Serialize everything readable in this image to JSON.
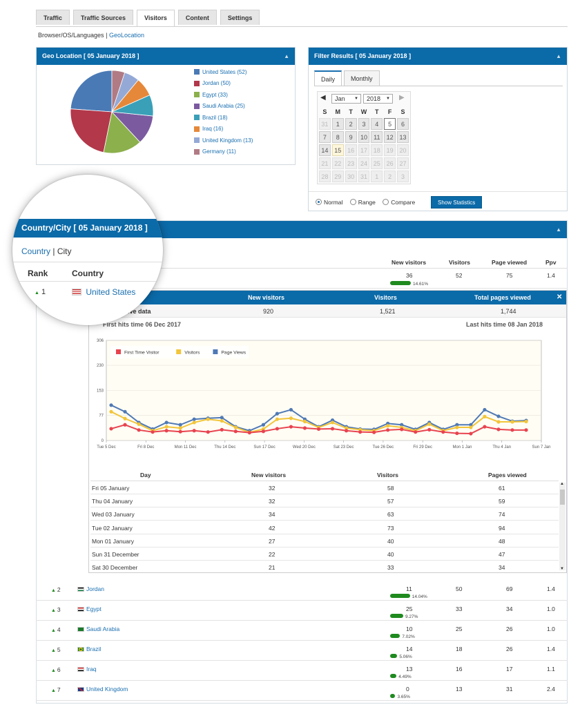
{
  "tabs": [
    "Traffic",
    "Traffic Sources",
    "Visitors",
    "Content",
    "Settings"
  ],
  "active_tab": "Visitors",
  "subnav": {
    "item1": "Browser/OS/Languages",
    "sep": "|",
    "item2": "GeoLocation"
  },
  "geo": {
    "title": "Geo Location   [ 05 January 2018 ]",
    "caret": "▲",
    "legend": [
      {
        "label": "United States (52)",
        "value": 52,
        "color": "#4a7ab5"
      },
      {
        "label": "Jordan (50)",
        "value": 50,
        "color": "#b2384a"
      },
      {
        "label": "Egypt (33)",
        "value": 33,
        "color": "#8cb04c"
      },
      {
        "label": "Saudi Arabia (25)",
        "value": 25,
        "color": "#7b5aa0"
      },
      {
        "label": "Brazil (18)",
        "value": 18,
        "color": "#3aa0b8"
      },
      {
        "label": "Iraq (16)",
        "value": 16,
        "color": "#e6883a"
      },
      {
        "label": "United Kingdom (13)",
        "value": 13,
        "color": "#94a9d6"
      },
      {
        "label": "Germany (11)",
        "value": 11,
        "color": "#b07b84"
      }
    ]
  },
  "filter": {
    "title": "Filter Results  [ 05 January 2018 ]",
    "caret": "▲",
    "tabs": [
      "Daily",
      "Monthly"
    ],
    "month": "Jan",
    "year": "2018",
    "weekdays": [
      "S",
      "M",
      "T",
      "W",
      "T",
      "F",
      "S"
    ],
    "weeks": [
      [
        "31",
        "1",
        "2",
        "3",
        "4",
        "5",
        "6"
      ],
      [
        "7",
        "8",
        "9",
        "10",
        "11",
        "12",
        "13"
      ],
      [
        "14",
        "15",
        "16",
        "17",
        "18",
        "19",
        "20"
      ],
      [
        "21",
        "22",
        "23",
        "24",
        "25",
        "26",
        "27"
      ],
      [
        "28",
        "29",
        "30",
        "31",
        "1",
        "2",
        "3"
      ]
    ],
    "modes": [
      "Normal",
      "Range",
      "Compare"
    ],
    "button": "Show Statistics"
  },
  "country_panel": {
    "title": "Country/City  [ 05 January 2018 ]",
    "caret": "▲",
    "subnav": {
      "country": "Country",
      "sep": "|",
      "city": "City"
    },
    "headers": {
      "rank": "Rank",
      "country": "Country",
      "new_visitors": "New visitors",
      "visitors": "Visitors",
      "page_viewed": "Page viewed",
      "ppv": "Ppv"
    },
    "first_row": {
      "rank": "1",
      "country": "United States",
      "new": "36",
      "pct": "14.61%",
      "visitors": "52",
      "pages": "75",
      "ppv": "1.4",
      "bar": 0.1461
    }
  },
  "detail": {
    "headers": {
      "new": "New visitors",
      "visitors": "Visitors",
      "total": "Total pages viewed",
      "close": "✕"
    },
    "cumulative_label": "Cumulative data",
    "cumulative": {
      "new": "920",
      "visitors": "1,521",
      "pages": "1,744"
    },
    "first_hits": "First hits time 06 Dec 2017",
    "last_hits": "Last hits time 08 Jan 2018",
    "table_headers": {
      "day": "Day",
      "new": "New visitors",
      "visitors": "Visitors",
      "pages": "Pages viewed"
    },
    "rows": [
      {
        "day": "Fri 05 January",
        "new": "32",
        "visitors": "58",
        "pages": "61"
      },
      {
        "day": "Thu 04 January",
        "new": "32",
        "visitors": "57",
        "pages": "59"
      },
      {
        "day": "Wed 03 January",
        "new": "34",
        "visitors": "63",
        "pages": "74"
      },
      {
        "day": "Tue 02 January",
        "new": "42",
        "visitors": "73",
        "pages": "94"
      },
      {
        "day": "Mon 01 January",
        "new": "27",
        "visitors": "40",
        "pages": "48"
      },
      {
        "day": "Sun 31 December",
        "new": "22",
        "visitors": "40",
        "pages": "47"
      },
      {
        "day": "Sat 30 December",
        "new": "21",
        "visitors": "33",
        "pages": "34"
      }
    ]
  },
  "chart_data": {
    "type": "line",
    "ylim": [
      0,
      306
    ],
    "yticks": [
      "306",
      "230",
      "153",
      "77",
      "0"
    ],
    "xticks": [
      "Tue 5 Dec",
      "Fri 8 Dec",
      "Mon 11 Dec",
      "Thu 14 Dec",
      "Sun 17 Dec",
      "Wed 20 Dec",
      "Sat 23 Dec",
      "Tue 26 Dec",
      "Fri 29 Dec",
      "Mon 1 Jan",
      "Thu 4 Jan",
      "Sun 7 Jan"
    ],
    "legend_position": "top-left",
    "series": [
      {
        "name": "First Time Visitor",
        "color": "#e8434f",
        "values": [
          36,
          48,
          32,
          26,
          30,
          27,
          30,
          26,
          33,
          28,
          24,
          28,
          36,
          42,
          38,
          35,
          36,
          30,
          26,
          25,
          32,
          34,
          26,
          33,
          26,
          22,
          21,
          42,
          34,
          32,
          32
        ]
      },
      {
        "name": "Visitors",
        "color": "#f2c53a",
        "values": [
          88,
          67,
          50,
          30,
          42,
          38,
          55,
          65,
          60,
          40,
          25,
          35,
          65,
          68,
          58,
          40,
          55,
          38,
          33,
          30,
          45,
          40,
          30,
          50,
          30,
          40,
          40,
          73,
          57,
          57,
          58
        ]
      },
      {
        "name": "Page Views",
        "color": "#4f79b5",
        "values": [
          108,
          88,
          55,
          35,
          55,
          48,
          65,
          68,
          70,
          42,
          30,
          48,
          82,
          94,
          65,
          42,
          62,
          42,
          35,
          34,
          52,
          48,
          34,
          55,
          34,
          48,
          48,
          94,
          74,
          59,
          61
        ]
      }
    ]
  },
  "countries": [
    {
      "rank": "2",
      "name": "Jordan",
      "new": "11",
      "pct": "14.04%",
      "bar": 0.1404,
      "visitors": "50",
      "pages": "69",
      "ppv": "1.4"
    },
    {
      "rank": "3",
      "name": "Egypt",
      "new": "25",
      "pct": "9.27%",
      "bar": 0.0927,
      "visitors": "33",
      "pages": "34",
      "ppv": "1.0"
    },
    {
      "rank": "4",
      "name": "Saudi Arabia",
      "new": "10",
      "pct": "7.02%",
      "bar": 0.0702,
      "visitors": "25",
      "pages": "26",
      "ppv": "1.0"
    },
    {
      "rank": "5",
      "name": "Brazil",
      "new": "14",
      "pct": "5.06%",
      "bar": 0.0506,
      "visitors": "18",
      "pages": "26",
      "ppv": "1.4"
    },
    {
      "rank": "6",
      "name": "Iraq",
      "new": "13",
      "pct": "4.49%",
      "bar": 0.0449,
      "visitors": "16",
      "pages": "17",
      "ppv": "1.1"
    },
    {
      "rank": "7",
      "name": "United Kingdom",
      "new": "0",
      "pct": "3.65%",
      "bar": 0.0365,
      "visitors": "13",
      "pages": "31",
      "ppv": "2.4"
    }
  ]
}
